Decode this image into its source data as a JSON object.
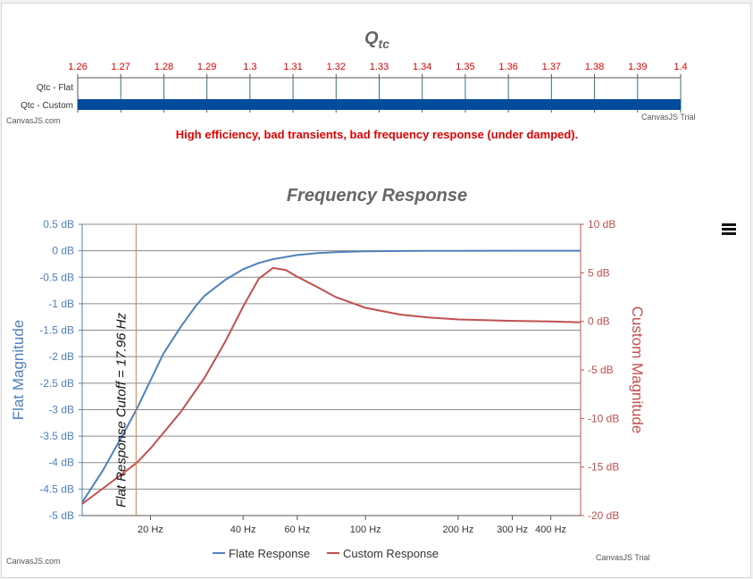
{
  "top_chart": {
    "title_main": "Q",
    "title_sub": "tc",
    "message": "High efficiency, bad transients, bad frequency response (under damped).",
    "credit_left": "CanvasJS.com",
    "credit_right": "CanvasJS Trial"
  },
  "bottom_chart": {
    "title": "Frequency Response",
    "credit_left": "CanvasJS.com",
    "credit_right": "CanvasJS Trial",
    "menu_icon": "hamburger-menu-icon",
    "cutoff_label": "Flat Response Cutoff = 17.96 Hz"
  },
  "colors": {
    "flat": "#4f81bc",
    "custom": "#c0504e",
    "accent_red": "#e00000",
    "bar": "#004b9b",
    "cutoff": "#d9813a",
    "title": "#666666"
  },
  "chart_data": [
    {
      "type": "bar",
      "orientation": "horizontal",
      "categories": [
        "Qtc - Flat",
        "Qtc - Custom"
      ],
      "values": [
        null,
        1.4
      ],
      "axis_top_ticks": [
        "1.26",
        "1.27",
        "1.28",
        "1.29",
        "1.3",
        "1.31",
        "1.32",
        "1.33",
        "1.34",
        "1.35",
        "1.36",
        "1.37",
        "1.38",
        "1.39",
        "1.4"
      ],
      "xlim": [
        1.26,
        1.4
      ],
      "grid": true
    },
    {
      "type": "line",
      "x_scale": "log",
      "xlim": [
        12,
        500
      ],
      "x_ticks": [
        "20 Hz",
        "40 Hz",
        "60 Hz",
        "100 Hz",
        "200 Hz",
        "300 Hz",
        "400 Hz"
      ],
      "x_tick_values": [
        20,
        40,
        60,
        100,
        200,
        300,
        400
      ],
      "y_left_label": "Flat Magnitude",
      "y_left_ticks": [
        "0.5 dB",
        "0 dB",
        "-0.5 dB",
        "-1 dB",
        "-1.5 dB",
        "-2 dB",
        "-2.5 dB",
        "-3 dB",
        "-3.5 dB",
        "-4 dB",
        "-4.5 dB",
        "-5 dB"
      ],
      "y_left_values": [
        0.5,
        0,
        -0.5,
        -1,
        -1.5,
        -2,
        -2.5,
        -3,
        -3.5,
        -4,
        -4.5,
        -5
      ],
      "y_left_lim": [
        -5,
        0.5
      ],
      "y_right_label": "Custom Magnitude",
      "y_right_ticks": [
        "10 dB",
        "5 dB",
        "0 dB",
        "-5 dB",
        "-10 dB",
        "-15 dB",
        "-20 dB"
      ],
      "y_right_values": [
        10,
        5,
        0,
        -5,
        -10,
        -15,
        -20
      ],
      "y_right_lim": [
        -20,
        10
      ],
      "series": [
        {
          "name": "Flate Response",
          "axis": "left",
          "x": [
            12,
            14,
            16,
            18,
            20,
            22,
            25,
            28,
            30,
            35,
            40,
            45,
            50,
            60,
            70,
            80,
            100,
            130,
            160,
            200,
            300,
            400,
            500
          ],
          "y": [
            -4.75,
            -4.15,
            -3.55,
            -3.0,
            -2.45,
            -1.95,
            -1.45,
            -1.05,
            -0.85,
            -0.55,
            -0.35,
            -0.23,
            -0.16,
            -0.08,
            -0.045,
            -0.027,
            -0.012,
            -0.005,
            -0.002,
            -0.001,
            0,
            0,
            0
          ]
        },
        {
          "name": "Custom Response",
          "axis": "right",
          "x": [
            12,
            15,
            18,
            20,
            25,
            30,
            35,
            40,
            45,
            50,
            55,
            60,
            70,
            80,
            100,
            130,
            160,
            200,
            300,
            400,
            500
          ],
          "y": [
            -18.8,
            -16.5,
            -14.6,
            -13.1,
            -9.4,
            -5.8,
            -2.1,
            1.5,
            4.4,
            5.5,
            5.3,
            4.6,
            3.5,
            2.5,
            1.4,
            0.7,
            0.4,
            0.2,
            0.05,
            0.0,
            -0.1
          ]
        }
      ],
      "annotation": {
        "type": "vertical-line",
        "x": 17.96,
        "label": "Flat Response Cutoff = 17.96 Hz"
      }
    }
  ]
}
